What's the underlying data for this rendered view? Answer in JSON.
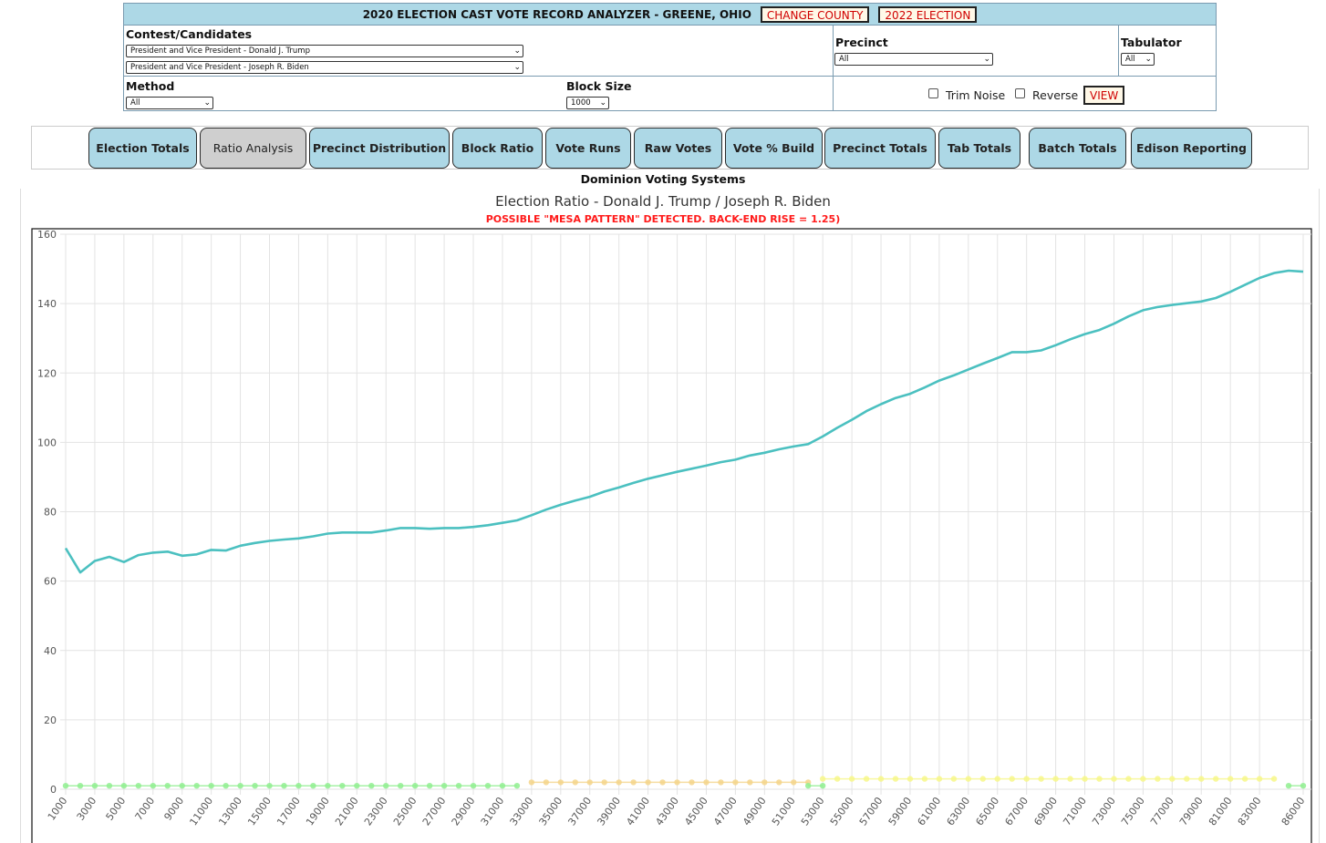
{
  "header": {
    "title": "2020 ELECTION CAST VOTE RECORD ANALYZER - GREENE, OHIO",
    "change_county": "CHANGE COUNTY",
    "election_2022": "2022 ELECTION"
  },
  "filters": {
    "contest_label": "Contest/Candidates",
    "candidate1": "President and Vice President - Donald J. Trump",
    "candidate2": "President and Vice President - Joseph R. Biden",
    "precinct_label": "Precinct",
    "precinct_value": "All",
    "tabulator_label": "Tabulator",
    "tabulator_value": "All",
    "method_label": "Method",
    "method_value": "All",
    "block_size_label": "Block Size",
    "block_size_value": "1000",
    "trim_noise_label": "Trim Noise",
    "reverse_label": "Reverse",
    "view_label": "VIEW"
  },
  "tabs": [
    "Election Totals",
    "Ratio Analysis",
    "Precinct Distribution",
    "Block Ratio",
    "Vote Runs",
    "Raw Votes",
    "Vote % Build",
    "Precinct Totals",
    "Tab Totals",
    "Batch Totals",
    "Edison Reporting"
  ],
  "active_tab": "Ratio Analysis",
  "subtitle": "Dominion Voting Systems",
  "chart": {
    "title": "Election Ratio - Donald J. Trump / Joseph R. Biden",
    "warning": "POSSIBLE \"MESA PATTERN\" DETECTED. BACK-END RISE = 1.25)"
  },
  "colors": {
    "header_bg": "#add8e6",
    "tab_bg": "#add8e6",
    "tab_active_bg": "#cfcfcf",
    "warning": "#ff1a1a",
    "ratio_line": "#4bc0c0",
    "mesa_low": "#90ee90",
    "mesa_mid": "#f5d58a",
    "mesa_high": "#f7f78a"
  },
  "chart_data": {
    "type": "line",
    "title": "Election Ratio - Donald J. Trump / Joseph R. Biden",
    "ylim": [
      0,
      160
    ],
    "y_ticks": [
      0,
      20,
      40,
      60,
      80,
      100,
      120,
      140,
      160
    ],
    "x_tick_labels": [
      "1000",
      "3000",
      "5000",
      "7000",
      "9000",
      "11000",
      "13000",
      "15000",
      "17000",
      "19000",
      "21000",
      "23000",
      "25000",
      "27000",
      "29000",
      "31000",
      "33000",
      "35000",
      "37000",
      "39000",
      "41000",
      "43000",
      "45000",
      "47000",
      "49000",
      "51000",
      "53000",
      "55000",
      "57000",
      "59000",
      "61000",
      "63000",
      "65000",
      "67000",
      "69000",
      "71000",
      "73000",
      "75000",
      "77000",
      "79000",
      "81000",
      "83000",
      "86000"
    ],
    "x": [
      1000,
      2000,
      3000,
      4000,
      5000,
      6000,
      7000,
      8000,
      9000,
      10000,
      11000,
      12000,
      13000,
      14000,
      15000,
      16000,
      17000,
      18000,
      19000,
      20000,
      21000,
      22000,
      23000,
      24000,
      25000,
      26000,
      27000,
      28000,
      29000,
      30000,
      31000,
      32000,
      33000,
      34000,
      35000,
      36000,
      37000,
      38000,
      39000,
      40000,
      41000,
      42000,
      43000,
      44000,
      45000,
      46000,
      47000,
      48000,
      49000,
      50000,
      51000,
      52000,
      53000,
      54000,
      55000,
      56000,
      57000,
      58000,
      59000,
      60000,
      61000,
      62000,
      63000,
      64000,
      65000,
      66000,
      67000,
      68000,
      69000,
      70000,
      71000,
      72000,
      73000,
      74000,
      75000,
      76000,
      77000,
      78000,
      79000,
      80000,
      81000,
      82000,
      83000,
      84000,
      85000,
      86000
    ],
    "series": [
      {
        "values": [
          69.5,
          62.5,
          65.8,
          67.0,
          65.5,
          67.5,
          68.2,
          68.5,
          67.3,
          67.7,
          69.0,
          68.8,
          70.2,
          71.0,
          71.6,
          72.0,
          72.3,
          72.9,
          73.7,
          74.0,
          74.0,
          74.0,
          74.6,
          75.3,
          75.3,
          75.1,
          75.3,
          75.3,
          75.6,
          76.1,
          76.8,
          77.5,
          79.0,
          80.6,
          82.0,
          83.2,
          84.3,
          85.8,
          87.0,
          88.3,
          89.5,
          90.5,
          91.5,
          92.4,
          93.3,
          94.3,
          95.0,
          96.2,
          97.0,
          98.0,
          98.8,
          99.5,
          101.7,
          104.2,
          106.5,
          109.0,
          111.0,
          112.8,
          114.0,
          115.8,
          117.8,
          119.3,
          121.0,
          122.7,
          124.3,
          126.0,
          126.0,
          126.5,
          128.0,
          129.7,
          131.2,
          132.4,
          134.2,
          136.3,
          138.1,
          139.0,
          139.6,
          140.1,
          140.6,
          141.6,
          143.4,
          145.4,
          147.4,
          148.8,
          149.5,
          149.2
        ]
      }
    ],
    "mesa_markers": [
      {
        "level": 1,
        "x_start": 1000,
        "x_end": 32000
      },
      {
        "level": 2,
        "x_start": 33000,
        "x_end": 52000
      },
      {
        "level": 1,
        "x_start": 52000,
        "x_end": 53000
      },
      {
        "level": 3,
        "x_start": 53000,
        "x_end": 84000
      },
      {
        "level": 1,
        "x_start": 85000,
        "x_end": 86000
      }
    ],
    "grid": true
  }
}
